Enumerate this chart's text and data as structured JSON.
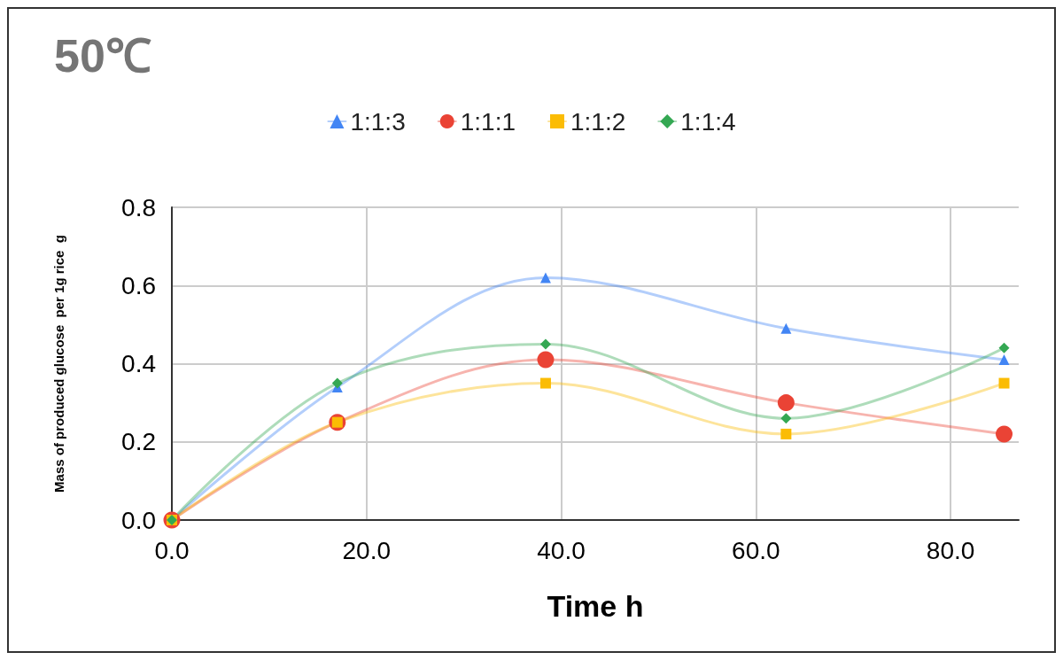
{
  "chart_data": {
    "type": "line",
    "title": "50℃",
    "xlabel": "Time h",
    "ylabel": "Mass of produced glucose  per 1g rice  g",
    "x": [
      0,
      17,
      38.4,
      63.1,
      85.5
    ],
    "series": [
      {
        "name": "1:1:3",
        "color": "#4285f4",
        "marker": "triangle",
        "values": [
          0,
          0.34,
          0.62,
          0.49,
          0.41
        ]
      },
      {
        "name": "1:1:1",
        "color": "#ea4335",
        "marker": "circle",
        "values": [
          0,
          0.25,
          0.41,
          0.3,
          0.22
        ]
      },
      {
        "name": "1:1:2",
        "color": "#fbbc04",
        "marker": "square",
        "values": [
          0,
          0.25,
          0.35,
          0.22,
          0.35
        ]
      },
      {
        "name": "1:1:4",
        "color": "#34a853",
        "marker": "diamond",
        "values": [
          0,
          0.35,
          0.45,
          0.26,
          0.44
        ]
      }
    ],
    "xlim": [
      0,
      87
    ],
    "xticks": [
      {
        "value": 0,
        "label": "0.0"
      },
      {
        "value": 20,
        "label": "20.0"
      },
      {
        "value": 40,
        "label": "40.0"
      },
      {
        "value": 60,
        "label": "60.0"
      },
      {
        "value": 80,
        "label": "80.0"
      }
    ],
    "ylim": [
      0,
      0.8
    ],
    "yticks": [
      {
        "value": 0,
        "label": "0.0"
      },
      0.2,
      0.4,
      0.6,
      0.8
    ],
    "grid": true,
    "legend": "top"
  }
}
